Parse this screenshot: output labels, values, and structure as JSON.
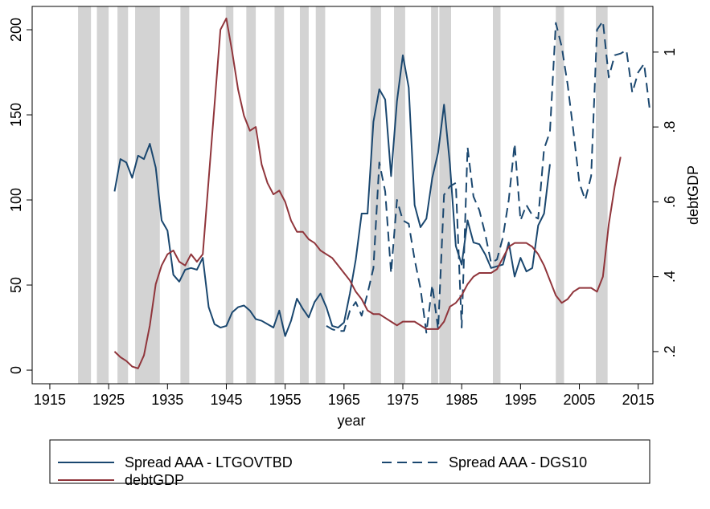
{
  "chart_data": {
    "type": "line",
    "xlabel": "year",
    "y2label": "debtGDP",
    "xlim": [
      1912,
      2017.5
    ],
    "ylim": [
      -8,
      213.7
    ],
    "y2lim": [
      0.114,
      1.122
    ],
    "xticks": [
      1915,
      1925,
      1935,
      1945,
      1955,
      1965,
      1975,
      1985,
      1995,
      2005,
      2015
    ],
    "yticks": [
      0,
      50,
      100,
      150,
      200
    ],
    "y2ticks": [
      {
        "value": 0.2,
        "label": ".2"
      },
      {
        "value": 0.4,
        "label": ".4"
      },
      {
        "value": 0.6,
        "label": ".6"
      },
      {
        "value": 0.8,
        "label": ".8"
      },
      1
    ],
    "recession_color": "#d3d3d3",
    "recessions": [
      [
        1919.8,
        1922
      ],
      [
        1923,
        1925
      ],
      [
        1926.5,
        1928.3
      ],
      [
        1929.5,
        1933.7
      ],
      [
        1937.2,
        1938.7
      ],
      [
        1944.9,
        1946.2
      ],
      [
        1948.4,
        1950
      ],
      [
        1953.2,
        1954.8
      ],
      [
        1957.5,
        1959
      ],
      [
        1960.2,
        1961.8
      ],
      [
        1969.5,
        1971.3
      ],
      [
        1973.5,
        1975.4
      ],
      [
        1979.8,
        1981
      ],
      [
        1981.2,
        1983.2
      ],
      [
        1990.3,
        1991.6
      ],
      [
        2001,
        2002.4
      ],
      [
        2007.8,
        2009.8
      ]
    ],
    "series": [
      {
        "name": "Spread AAA - LTGOVTBD",
        "color": "#1a476f",
        "line_style": "solid",
        "x": [
          1926,
          1927,
          1928,
          1929,
          1930,
          1931,
          1932,
          1933,
          1934,
          1935,
          1936,
          1937,
          1938,
          1939,
          1940,
          1941,
          1942,
          1943,
          1944,
          1945,
          1946,
          1947,
          1948,
          1949,
          1950,
          1951,
          1952,
          1953,
          1954,
          1955,
          1956,
          1957,
          1958,
          1959,
          1960,
          1961,
          1962,
          1963,
          1964,
          1965,
          1966,
          1967,
          1968,
          1969,
          1970,
          1971,
          1972,
          1973,
          1974,
          1975,
          1976,
          1977,
          1978,
          1979,
          1980,
          1981,
          1982,
          1983,
          1984,
          1985,
          1986,
          1987,
          1988,
          1989,
          1990,
          1991,
          1992,
          1993,
          1994,
          1995,
          1996,
          1997,
          1998,
          1999,
          2000
        ],
        "values": [
          105,
          124,
          122,
          113,
          126,
          124,
          133,
          119,
          88,
          82,
          56,
          52,
          59,
          60,
          59,
          66,
          37,
          27,
          25,
          26,
          34,
          37,
          38,
          35,
          30,
          29,
          27,
          25,
          35,
          20,
          29,
          42,
          36,
          31,
          40,
          45,
          37,
          26,
          25,
          28,
          45,
          65,
          92,
          92,
          146,
          165,
          159,
          114,
          158,
          185,
          166,
          97,
          84,
          89,
          113,
          128,
          156,
          121,
          73,
          62,
          88,
          75,
          74,
          68,
          60,
          61,
          62,
          75,
          55,
          66,
          58,
          60,
          85,
          92,
          121
        ]
      },
      {
        "name": "Spread AAA - DGS10",
        "color": "#1a476f",
        "line_style": "dashed",
        "x": [
          1962,
          1963,
          1964,
          1965,
          1966,
          1967,
          1968,
          1969,
          1970,
          1971,
          1972,
          1973,
          1974,
          1975,
          1976,
          1977,
          1978,
          1979,
          1980,
          1981,
          1982,
          1983,
          1984,
          1985,
          1986,
          1987,
          1988,
          1989,
          1990,
          1991,
          1992,
          1993,
          1994,
          1995,
          1996,
          1997,
          1998,
          1999,
          2000,
          2001,
          2002,
          2003,
          2004,
          2005,
          2006,
          2007,
          2008,
          2009,
          2010,
          2011,
          2012,
          2013,
          2014,
          2015,
          2016,
          2017
        ],
        "values": [
          26,
          24,
          23,
          23,
          35,
          40,
          32,
          45,
          60,
          122,
          105,
          57,
          100,
          88,
          86,
          65,
          48,
          22,
          50,
          24,
          103,
          108,
          110,
          25,
          131,
          102,
          94,
          80,
          63,
          65,
          78,
          100,
          133,
          88,
          97,
          91,
          89,
          130,
          140,
          204,
          190,
          168,
          140,
          110,
          100,
          114,
          200,
          205,
          172,
          185,
          186,
          188,
          163,
          175,
          180,
          152
        ]
      },
      {
        "name": "debtGDP",
        "color": "#90353b",
        "line_style": "solid",
        "axis": "y2",
        "x": [
          1926,
          1927,
          1928,
          1929,
          1930,
          1931,
          1932,
          1933,
          1934,
          1935,
          1936,
          1937,
          1938,
          1939,
          1940,
          1941,
          1942,
          1943,
          1944,
          1945,
          1946,
          1947,
          1948,
          1949,
          1950,
          1951,
          1952,
          1953,
          1954,
          1955,
          1956,
          1957,
          1958,
          1959,
          1960,
          1961,
          1962,
          1963,
          1964,
          1965,
          1966,
          1967,
          1968,
          1969,
          1970,
          1971,
          1972,
          1973,
          1974,
          1975,
          1976,
          1977,
          1978,
          1979,
          1980,
          1981,
          1982,
          1983,
          1984,
          1985,
          1986,
          1987,
          1988,
          1989,
          1990,
          1991,
          1992,
          1993,
          1994,
          1995,
          1996,
          1997,
          1998,
          1999,
          2000,
          2001,
          2002,
          2003,
          2004,
          2005,
          2006,
          2007,
          2008,
          2009,
          2010,
          2011,
          2012
        ],
        "values": [
          0.2,
          0.185,
          0.175,
          0.16,
          0.155,
          0.19,
          0.27,
          0.38,
          0.43,
          0.46,
          0.47,
          0.44,
          0.43,
          0.46,
          0.44,
          0.46,
          0.66,
          0.86,
          1.06,
          1.09,
          1.0,
          0.9,
          0.83,
          0.79,
          0.8,
          0.7,
          0.65,
          0.62,
          0.63,
          0.6,
          0.55,
          0.52,
          0.52,
          0.5,
          0.49,
          0.47,
          0.46,
          0.45,
          0.43,
          0.41,
          0.39,
          0.36,
          0.34,
          0.31,
          0.3,
          0.3,
          0.29,
          0.28,
          0.27,
          0.28,
          0.28,
          0.28,
          0.27,
          0.26,
          0.26,
          0.26,
          0.28,
          0.32,
          0.33,
          0.35,
          0.38,
          0.4,
          0.41,
          0.41,
          0.41,
          0.42,
          0.45,
          0.48,
          0.49,
          0.49,
          0.49,
          0.48,
          0.46,
          0.43,
          0.39,
          0.35,
          0.33,
          0.34,
          0.36,
          0.37,
          0.37,
          0.37,
          0.36,
          0.4,
          0.54,
          0.64,
          0.72
        ]
      }
    ]
  }
}
